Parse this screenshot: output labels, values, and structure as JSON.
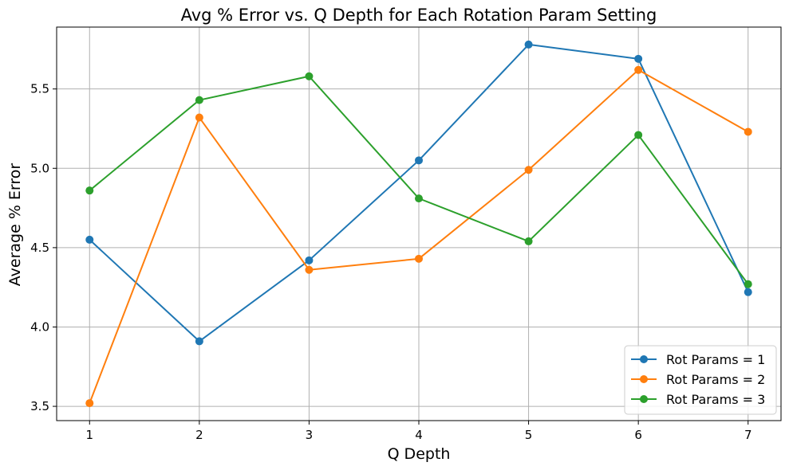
{
  "chart_data": {
    "type": "line",
    "title": "Avg % Error vs. Q Depth for Each Rotation Param Setting",
    "xlabel": "Q Depth",
    "ylabel": "Average % Error",
    "x": [
      1,
      2,
      3,
      4,
      5,
      6,
      7
    ],
    "xlim": [
      0.7,
      7.3
    ],
    "ylim": [
      3.41,
      5.89
    ],
    "xticks": [
      "1",
      "2",
      "3",
      "4",
      "5",
      "6",
      "7"
    ],
    "yticks": [
      "3.5",
      "4.0",
      "4.5",
      "5.0",
      "5.5"
    ],
    "grid": true,
    "legend_position": "lower-right",
    "series": [
      {
        "name": "Rot Params = 1",
        "color": "#1f77b4",
        "values": [
          4.55,
          3.91,
          4.42,
          5.05,
          5.78,
          5.69,
          4.22
        ]
      },
      {
        "name": "Rot Params = 2",
        "color": "#ff7f0e",
        "values": [
          3.52,
          5.32,
          4.36,
          4.43,
          4.99,
          5.62,
          5.23
        ]
      },
      {
        "name": "Rot Params = 3",
        "color": "#2ca02c",
        "values": [
          4.86,
          5.43,
          5.58,
          4.81,
          4.54,
          5.21,
          4.27
        ]
      }
    ]
  }
}
